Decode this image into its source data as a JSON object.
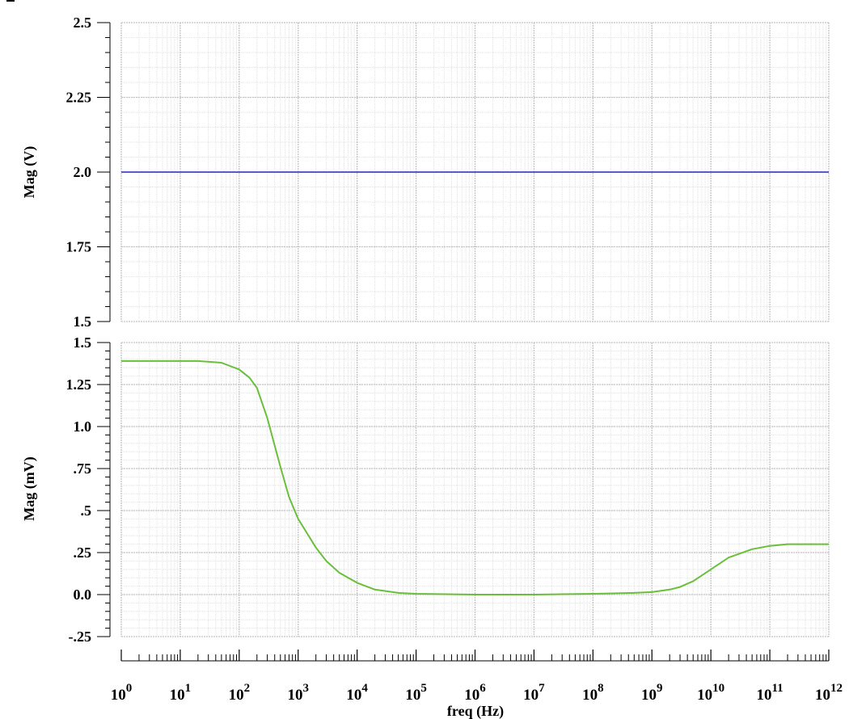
{
  "chart_data": [
    {
      "type": "line",
      "ylabel": "Mag (V)",
      "xlabel": "",
      "x_scale": "log",
      "xlim": [
        1,
        1000000000000.0
      ],
      "ylim": [
        1.5,
        2.5
      ],
      "yticks": [
        "1.5",
        "1.75",
        "2.0",
        "2.25",
        "2.5"
      ],
      "ytick_values": [
        1.5,
        1.75,
        2.0,
        2.25,
        2.5
      ],
      "grid": true,
      "color": "#5a5ac8",
      "series": [
        {
          "x": [
            1,
            1000000000000.0
          ],
          "values": [
            2.0,
            2.0
          ]
        }
      ]
    },
    {
      "type": "line",
      "ylabel": "Mag (mV)",
      "xlabel": "freq (Hz)",
      "x_scale": "log",
      "xlim": [
        1,
        1000000000000.0
      ],
      "ylim": [
        -0.25,
        1.5
      ],
      "yticks": [
        "-.25",
        "0.0",
        ".25",
        ".5",
        ".75",
        "1.0",
        "1.25",
        "1.5"
      ],
      "ytick_values": [
        -0.25,
        0.0,
        0.25,
        0.5,
        0.75,
        1.0,
        1.25,
        1.5
      ],
      "xtick_exponents": [
        "0",
        "1",
        "2",
        "3",
        "4",
        "5",
        "6",
        "7",
        "8",
        "9",
        "10",
        "11",
        "12"
      ],
      "grid": true,
      "color": "#6abf3a",
      "series": [
        {
          "x": [
            1,
            10,
            20,
            50,
            100,
            150,
            200,
            300,
            500,
            700,
            1000,
            2000,
            3000,
            5000,
            10000,
            20000,
            50000,
            100000,
            1000000.0,
            10000000.0,
            100000000.0,
            500000000.0,
            1000000000.0,
            2000000000.0,
            3000000000.0,
            5000000000.0,
            10000000000.0,
            20000000000.0,
            50000000000.0,
            100000000000.0,
            200000000000.0,
            1000000000000.0
          ],
          "values": [
            1.39,
            1.39,
            1.39,
            1.38,
            1.34,
            1.29,
            1.23,
            1.05,
            0.76,
            0.58,
            0.45,
            0.28,
            0.2,
            0.13,
            0.07,
            0.03,
            0.01,
            0.005,
            0.0,
            0.0,
            0.005,
            0.01,
            0.015,
            0.03,
            0.045,
            0.08,
            0.15,
            0.22,
            0.27,
            0.29,
            0.3,
            0.3
          ]
        }
      ]
    }
  ],
  "superscript_base": "10"
}
